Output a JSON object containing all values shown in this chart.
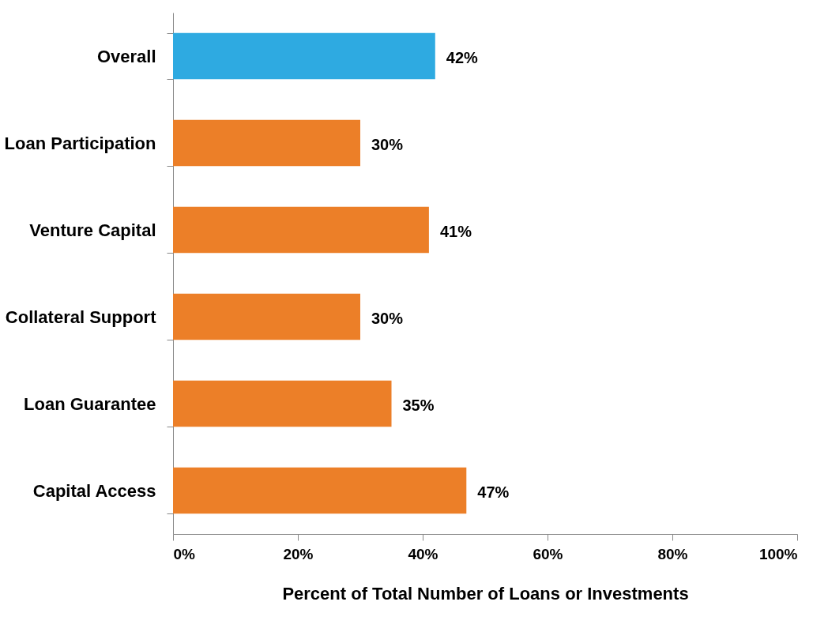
{
  "chart_data": {
    "type": "bar",
    "orientation": "horizontal",
    "categories": [
      "Overall",
      "Loan Participation",
      "Venture Capital",
      "Collateral Support",
      "Loan Guarantee",
      "Capital Access"
    ],
    "values": [
      42,
      30,
      41,
      30,
      35,
      47
    ],
    "colors": [
      "#2eaae1",
      "#ec7f28",
      "#ec7f28",
      "#ec7f28",
      "#ec7f28",
      "#ec7f28"
    ],
    "value_labels": [
      "42%",
      "30%",
      "41%",
      "30%",
      "35%",
      "47%"
    ],
    "xlabel": "Percent of Total Number of Loans or Investments",
    "xlim": [
      0,
      100
    ],
    "xticks": [
      {
        "value": 0,
        "label": "0%"
      },
      {
        "value": 20,
        "label": "20%"
      },
      {
        "value": 40,
        "label": "40%"
      },
      {
        "value": 60,
        "label": "60%"
      },
      {
        "value": 80,
        "label": "80%"
      },
      {
        "value": 100,
        "label": "100%"
      }
    ],
    "grid": false
  }
}
